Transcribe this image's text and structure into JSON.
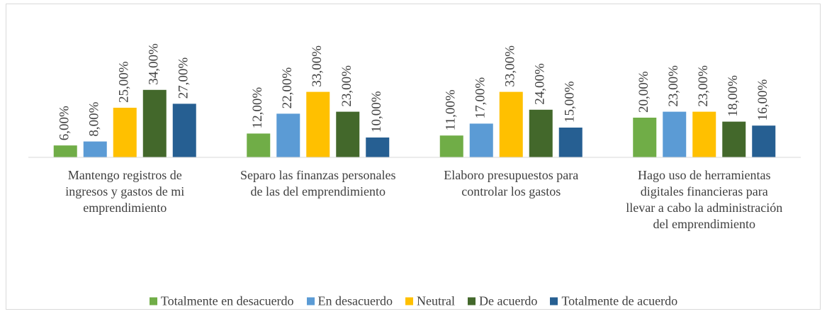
{
  "chart_data": {
    "type": "bar",
    "categories": [
      "Mantengo registros de ingresos y gastos de mi emprendimiento",
      "Separo las finanzas personales de las del emprendimiento",
      "Elaboro presupuestos para controlar los gastos",
      "Hago uso de herramientas digitales financieras para llevar a cabo la administración del emprendimiento"
    ],
    "series": [
      {
        "name": "Totalmente en desacuerdo",
        "color": "#70ad47",
        "values": [
          6,
          12,
          11,
          20
        ],
        "value_labels": [
          "6,00%",
          "12,00%",
          "11,00%",
          "20,00%"
        ]
      },
      {
        "name": "En desacuerdo",
        "color": "#5b9bd5",
        "values": [
          8,
          22,
          17,
          23
        ],
        "value_labels": [
          "8,00%",
          "22,00%",
          "17,00%",
          "23,00%"
        ]
      },
      {
        "name": "Neutral",
        "color": "#ffc000",
        "values": [
          25,
          33,
          33,
          23
        ],
        "value_labels": [
          "25,00%",
          "33,00%",
          "33,00%",
          "23,00%"
        ]
      },
      {
        "name": "De acuerdo",
        "color": "#43682b",
        "values": [
          34,
          23,
          24,
          18
        ],
        "value_labels": [
          "34,00%",
          "23,00%",
          "24,00%",
          "18,00%"
        ]
      },
      {
        "name": "Totalmente de acuerdo",
        "color": "#265f92",
        "values": [
          27,
          10,
          15,
          16
        ],
        "value_labels": [
          "27,00%",
          "10,00%",
          "15,00%",
          "16,00%"
        ]
      }
    ],
    "ylim": [
      0,
      40
    ],
    "legend": "bottom"
  }
}
